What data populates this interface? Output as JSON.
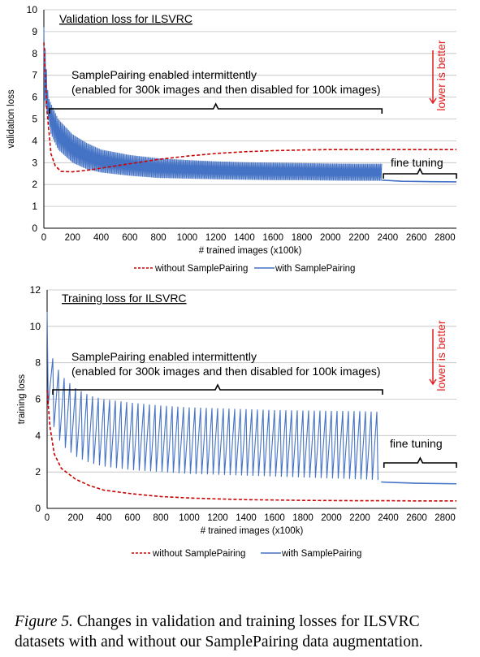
{
  "chart_data": [
    {
      "type": "line",
      "title": "Validation loss for ILSVRC",
      "xlabel": "# trained images (x100k)",
      "ylabel": "validation loss",
      "xlim": [
        0,
        2880
      ],
      "ylim": [
        0,
        10
      ],
      "xticks": [
        "0",
        "200",
        "400",
        "600",
        "800",
        "1000",
        "1200",
        "1400",
        "1600",
        "1800",
        "2000",
        "2200",
        "2400",
        "2600",
        "2800"
      ],
      "yticks": [
        "0",
        "1",
        "2",
        "3",
        "4",
        "5",
        "6",
        "7",
        "8",
        "9",
        "10"
      ],
      "grid": true,
      "legend_position": "bottom-center",
      "annotations": {
        "bracket_main_line1": "SamplePairing enabled intermittently",
        "bracket_main_line2": "(enabled for 300k images and then disabled for 100k images)",
        "fine_tuning": "fine tuning",
        "lower_is_better": "lower is better"
      },
      "series": [
        {
          "name": "without SamplePairing",
          "color": "#cc0000",
          "style": "dashed",
          "x": [
            0,
            20,
            50,
            80,
            120,
            200,
            300,
            400,
            600,
            800,
            1000,
            1200,
            1400,
            1600,
            1800,
            2000,
            2200,
            2400,
            2600,
            2880
          ],
          "y": [
            8.5,
            5.5,
            3.4,
            2.85,
            2.6,
            2.58,
            2.65,
            2.75,
            2.95,
            3.15,
            3.3,
            3.42,
            3.5,
            3.55,
            3.58,
            3.6,
            3.6,
            3.6,
            3.6,
            3.6
          ]
        },
        {
          "name": "with SamplePairing",
          "color": "#4472c4",
          "style": "solid",
          "band_x": [
            0,
            30,
            50,
            100,
            200,
            300,
            400,
            600,
            800,
            1000,
            1200,
            1400,
            1600,
            1800,
            2000,
            2200,
            2360
          ],
          "band_low": [
            6.0,
            5.0,
            4.3,
            3.6,
            3.0,
            2.7,
            2.55,
            2.4,
            2.3,
            2.27,
            2.24,
            2.22,
            2.2,
            2.2,
            2.18,
            2.17,
            2.17
          ],
          "band_high": [
            9.2,
            6.0,
            5.7,
            5.0,
            4.3,
            3.9,
            3.6,
            3.35,
            3.2,
            3.12,
            3.06,
            3.02,
            3.0,
            2.98,
            2.96,
            2.95,
            2.95
          ],
          "x": [
            2360,
            2500,
            2700,
            2880
          ],
          "y": [
            2.2,
            2.15,
            2.13,
            2.12
          ]
        }
      ]
    },
    {
      "type": "line",
      "title": "Training loss for ILSVRC",
      "xlabel": "# trained images (x100k)",
      "ylabel": "training loss",
      "xlim": [
        0,
        2880
      ],
      "ylim": [
        0,
        12
      ],
      "xticks": [
        "0",
        "200",
        "400",
        "600",
        "800",
        "1000",
        "1200",
        "1400",
        "1600",
        "1800",
        "2000",
        "2200",
        "2400",
        "2600",
        "2800"
      ],
      "yticks": [
        "0",
        "2",
        "4",
        "6",
        "8",
        "10",
        "12"
      ],
      "grid": true,
      "legend_position": "bottom-center",
      "annotations": {
        "bracket_main_line1": "SamplePairing enabled intermittently",
        "bracket_main_line2": "(enabled for 300k images and then disabled for 100k images)",
        "fine_tuning": "fine tuning",
        "lower_is_better": "lower is better"
      },
      "series": [
        {
          "name": "without SamplePairing",
          "color": "#cc0000",
          "style": "dashed",
          "x": [
            0,
            20,
            50,
            100,
            200,
            300,
            400,
            600,
            800,
            1000,
            1200,
            1400,
            1600,
            1800,
            2000,
            2200,
            2400,
            2600,
            2880
          ],
          "y": [
            6.5,
            4.5,
            3.0,
            2.2,
            1.6,
            1.25,
            1.0,
            0.8,
            0.65,
            0.57,
            0.52,
            0.48,
            0.46,
            0.44,
            0.43,
            0.42,
            0.42,
            0.41,
            0.41
          ]
        },
        {
          "name": "with SamplePairing",
          "color": "#4472c4",
          "style": "solid",
          "peak_x": [
            0,
            30,
            100,
            200,
            300,
            400,
            600,
            800,
            1000,
            1200,
            1400,
            1600,
            1800,
            2000,
            2200,
            2350
          ],
          "peak_y": [
            10.8,
            8.4,
            7.3,
            6.6,
            6.2,
            6.0,
            5.8,
            5.65,
            5.55,
            5.5,
            5.45,
            5.4,
            5.38,
            5.36,
            5.34,
            5.3
          ],
          "trough_x": [
            0,
            30,
            100,
            200,
            300,
            400,
            600,
            800,
            1000,
            1200,
            1400,
            1600,
            1800,
            2000,
            2200,
            2350
          ],
          "trough_y": [
            6.0,
            4.8,
            3.5,
            2.85,
            2.5,
            2.3,
            2.1,
            2.0,
            1.9,
            1.85,
            1.8,
            1.75,
            1.7,
            1.65,
            1.6,
            1.55
          ],
          "x": [
            2350,
            2450,
            2600,
            2880
          ],
          "y": [
            1.45,
            1.42,
            1.38,
            1.35
          ]
        }
      ]
    }
  ],
  "caption": {
    "lead": "Figure 5.",
    "text": " Changes in validation and training losses for ILSVRC datasets with and without our SamplePairing data augmentation."
  }
}
